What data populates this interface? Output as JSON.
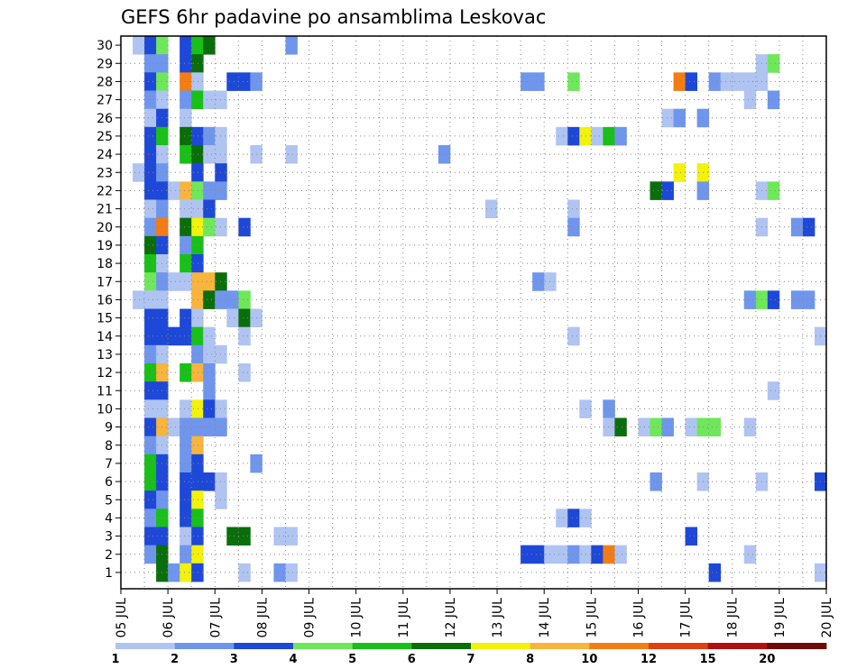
{
  "chart_data": {
    "type": "heatmap",
    "title": "GEFS 6hr padavine po ansamblima Leskovac",
    "x_tick_labels": [
      "05 JUL",
      "06 JUL",
      "07 JUL",
      "08 JUL",
      "09 JUL",
      "10 JUL",
      "11 JUL",
      "12 JUL",
      "13 JUL",
      "14 JUL",
      "15 JUL",
      "16 JUL",
      "17 JUL",
      "18 JUL",
      "19 JUL",
      "20 JUL"
    ],
    "y_tick_labels": [
      "1",
      "2",
      "3",
      "4",
      "5",
      "6",
      "7",
      "8",
      "9",
      "10",
      "11",
      "12",
      "13",
      "14",
      "15",
      "16",
      "17",
      "18",
      "19",
      "20",
      "21",
      "22",
      "23",
      "24",
      "25",
      "26",
      "27",
      "28",
      "29",
      "30"
    ],
    "xlim": [
      0,
      60
    ],
    "ylim": [
      0,
      30
    ],
    "grid": true,
    "colorbar": {
      "levels": [
        "1",
        "2",
        "3",
        "4",
        "5",
        "6",
        "7",
        "8",
        "10",
        "12",
        "15",
        "20"
      ],
      "colors": [
        "#b0c4f2",
        "#6f96ec",
        "#1e48d8",
        "#6ee85a",
        "#18c018",
        "#0a6e0a",
        "#f2f20a",
        "#f8b43c",
        "#f47c14",
        "#e04010",
        "#b41010",
        "#6e0a0a"
      ]
    },
    "cells": [
      [
        1,
        30,
        1
      ],
      [
        2,
        30,
        3
      ],
      [
        3,
        30,
        4
      ],
      [
        5,
        30,
        3
      ],
      [
        6,
        30,
        5
      ],
      [
        7,
        30,
        6
      ],
      [
        14,
        30,
        2
      ],
      [
        2,
        29,
        2
      ],
      [
        3,
        29,
        2
      ],
      [
        5,
        29,
        3
      ],
      [
        6,
        29,
        6
      ],
      [
        54,
        29,
        1
      ],
      [
        55,
        29,
        4
      ],
      [
        2,
        28,
        3
      ],
      [
        3,
        28,
        4
      ],
      [
        5,
        28,
        9
      ],
      [
        6,
        28,
        1
      ],
      [
        9,
        28,
        3
      ],
      [
        10,
        28,
        3
      ],
      [
        11,
        28,
        2
      ],
      [
        34,
        28,
        2
      ],
      [
        35,
        28,
        2
      ],
      [
        38,
        28,
        4
      ],
      [
        47,
        28,
        9
      ],
      [
        48,
        28,
        3
      ],
      [
        50,
        28,
        2
      ],
      [
        51,
        28,
        1
      ],
      [
        52,
        28,
        1
      ],
      [
        53,
        28,
        1
      ],
      [
        54,
        28,
        1
      ],
      [
        2,
        27,
        2
      ],
      [
        3,
        27,
        1
      ],
      [
        5,
        27,
        2
      ],
      [
        6,
        27,
        5
      ],
      [
        7,
        27,
        1
      ],
      [
        8,
        27,
        1
      ],
      [
        53,
        27,
        1
      ],
      [
        55,
        27,
        2
      ],
      [
        2,
        26,
        1
      ],
      [
        3,
        26,
        3
      ],
      [
        5,
        26,
        1
      ],
      [
        46,
        26,
        1
      ],
      [
        47,
        26,
        2
      ],
      [
        49,
        26,
        2
      ],
      [
        2,
        25,
        3
      ],
      [
        3,
        25,
        5
      ],
      [
        5,
        25,
        6
      ],
      [
        6,
        25,
        3
      ],
      [
        7,
        25,
        2
      ],
      [
        8,
        25,
        1
      ],
      [
        37,
        25,
        1
      ],
      [
        38,
        25,
        3
      ],
      [
        39,
        25,
        7
      ],
      [
        40,
        25,
        1
      ],
      [
        41,
        25,
        5
      ],
      [
        42,
        25,
        2
      ],
      [
        2,
        24,
        3
      ],
      [
        3,
        24,
        1
      ],
      [
        5,
        24,
        5
      ],
      [
        6,
        24,
        6
      ],
      [
        7,
        24,
        1
      ],
      [
        8,
        24,
        1
      ],
      [
        11,
        24,
        1
      ],
      [
        14,
        24,
        1
      ],
      [
        27,
        24,
        2
      ],
      [
        1,
        23,
        1
      ],
      [
        2,
        23,
        3
      ],
      [
        3,
        23,
        2
      ],
      [
        6,
        23,
        3
      ],
      [
        8,
        23,
        3
      ],
      [
        47,
        23,
        7
      ],
      [
        49,
        23,
        7
      ],
      [
        2,
        22,
        3
      ],
      [
        3,
        22,
        3
      ],
      [
        4,
        22,
        1
      ],
      [
        5,
        22,
        8
      ],
      [
        6,
        22,
        4
      ],
      [
        7,
        22,
        2
      ],
      [
        8,
        22,
        2
      ],
      [
        45,
        22,
        6
      ],
      [
        46,
        22,
        3
      ],
      [
        49,
        22,
        2
      ],
      [
        54,
        22,
        1
      ],
      [
        55,
        22,
        4
      ],
      [
        2,
        21,
        1
      ],
      [
        3,
        21,
        2
      ],
      [
        5,
        21,
        1
      ],
      [
        6,
        21,
        1
      ],
      [
        7,
        21,
        3
      ],
      [
        31,
        21,
        1
      ],
      [
        38,
        21,
        1
      ],
      [
        2,
        20,
        2
      ],
      [
        3,
        20,
        9
      ],
      [
        5,
        20,
        6
      ],
      [
        6,
        20,
        7
      ],
      [
        7,
        20,
        4
      ],
      [
        8,
        20,
        1
      ],
      [
        10,
        20,
        3
      ],
      [
        38,
        20,
        2
      ],
      [
        54,
        20,
        1
      ],
      [
        57,
        20,
        2
      ],
      [
        58,
        20,
        3
      ],
      [
        2,
        19,
        6
      ],
      [
        3,
        19,
        3
      ],
      [
        5,
        19,
        2
      ],
      [
        6,
        19,
        5
      ],
      [
        2,
        18,
        5
      ],
      [
        3,
        18,
        1
      ],
      [
        5,
        18,
        5
      ],
      [
        6,
        18,
        3
      ],
      [
        2,
        17,
        4
      ],
      [
        3,
        17,
        2
      ],
      [
        4,
        17,
        1
      ],
      [
        5,
        17,
        1
      ],
      [
        6,
        17,
        8
      ],
      [
        7,
        17,
        8
      ],
      [
        8,
        17,
        6
      ],
      [
        35,
        17,
        2
      ],
      [
        36,
        17,
        1
      ],
      [
        1,
        16,
        1
      ],
      [
        2,
        16,
        1
      ],
      [
        3,
        16,
        1
      ],
      [
        6,
        16,
        8
      ],
      [
        7,
        16,
        6
      ],
      [
        8,
        16,
        2
      ],
      [
        9,
        16,
        2
      ],
      [
        10,
        16,
        4
      ],
      [
        53,
        16,
        2
      ],
      [
        54,
        16,
        4
      ],
      [
        55,
        16,
        3
      ],
      [
        57,
        16,
        2
      ],
      [
        58,
        16,
        2
      ],
      [
        2,
        15,
        3
      ],
      [
        3,
        15,
        3
      ],
      [
        5,
        15,
        3
      ],
      [
        6,
        15,
        1
      ],
      [
        9,
        15,
        1
      ],
      [
        10,
        15,
        6
      ],
      [
        11,
        15,
        1
      ],
      [
        2,
        14,
        3
      ],
      [
        3,
        14,
        3
      ],
      [
        4,
        14,
        3
      ],
      [
        5,
        14,
        3
      ],
      [
        6,
        14,
        5
      ],
      [
        7,
        14,
        1
      ],
      [
        10,
        14,
        1
      ],
      [
        38,
        14,
        1
      ],
      [
        59,
        14,
        1
      ],
      [
        2,
        13,
        2
      ],
      [
        3,
        13,
        1
      ],
      [
        6,
        13,
        2
      ],
      [
        7,
        13,
        1
      ],
      [
        8,
        13,
        1
      ],
      [
        2,
        12,
        5
      ],
      [
        3,
        12,
        8
      ],
      [
        5,
        12,
        5
      ],
      [
        6,
        12,
        8
      ],
      [
        7,
        12,
        2
      ],
      [
        10,
        12,
        1
      ],
      [
        2,
        11,
        3
      ],
      [
        3,
        11,
        3
      ],
      [
        7,
        11,
        2
      ],
      [
        55,
        11,
        1
      ],
      [
        2,
        10,
        1
      ],
      [
        3,
        10,
        1
      ],
      [
        5,
        10,
        1
      ],
      [
        6,
        10,
        7
      ],
      [
        7,
        10,
        3
      ],
      [
        8,
        10,
        1
      ],
      [
        39,
        10,
        1
      ],
      [
        41,
        10,
        2
      ],
      [
        2,
        9,
        3
      ],
      [
        3,
        9,
        8
      ],
      [
        4,
        9,
        1
      ],
      [
        5,
        9,
        2
      ],
      [
        6,
        9,
        2
      ],
      [
        7,
        9,
        2
      ],
      [
        8,
        9,
        2
      ],
      [
        41,
        9,
        1
      ],
      [
        42,
        9,
        6
      ],
      [
        44,
        9,
        1
      ],
      [
        45,
        9,
        4
      ],
      [
        46,
        9,
        2
      ],
      [
        48,
        9,
        1
      ],
      [
        49,
        9,
        4
      ],
      [
        50,
        9,
        4
      ],
      [
        53,
        9,
        1
      ],
      [
        2,
        8,
        2
      ],
      [
        3,
        8,
        1
      ],
      [
        5,
        8,
        2
      ],
      [
        6,
        8,
        8
      ],
      [
        2,
        7,
        5
      ],
      [
        3,
        7,
        3
      ],
      [
        5,
        7,
        2
      ],
      [
        6,
        7,
        3
      ],
      [
        11,
        7,
        2
      ],
      [
        2,
        6,
        5
      ],
      [
        3,
        6,
        3
      ],
      [
        5,
        6,
        3
      ],
      [
        6,
        6,
        3
      ],
      [
        7,
        6,
        3
      ],
      [
        8,
        6,
        1
      ],
      [
        45,
        6,
        2
      ],
      [
        49,
        6,
        1
      ],
      [
        54,
        6,
        1
      ],
      [
        59,
        6,
        3
      ],
      [
        2,
        5,
        3
      ],
      [
        3,
        5,
        2
      ],
      [
        5,
        5,
        3
      ],
      [
        6,
        5,
        7
      ],
      [
        8,
        5,
        1
      ],
      [
        2,
        4,
        2
      ],
      [
        3,
        4,
        5
      ],
      [
        5,
        4,
        3
      ],
      [
        6,
        4,
        5
      ],
      [
        37,
        4,
        1
      ],
      [
        38,
        4,
        3
      ],
      [
        39,
        4,
        1
      ],
      [
        2,
        3,
        3
      ],
      [
        3,
        3,
        3
      ],
      [
        5,
        3,
        1
      ],
      [
        6,
        3,
        3
      ],
      [
        9,
        3,
        6
      ],
      [
        10,
        3,
        6
      ],
      [
        13,
        3,
        1
      ],
      [
        14,
        3,
        1
      ],
      [
        48,
        3,
        3
      ],
      [
        2,
        2,
        2
      ],
      [
        3,
        2,
        6
      ],
      [
        5,
        2,
        2
      ],
      [
        6,
        2,
        7
      ],
      [
        34,
        2,
        3
      ],
      [
        35,
        2,
        3
      ],
      [
        36,
        2,
        1
      ],
      [
        37,
        2,
        1
      ],
      [
        38,
        2,
        2
      ],
      [
        39,
        2,
        1
      ],
      [
        40,
        2,
        3
      ],
      [
        41,
        2,
        9
      ],
      [
        42,
        2,
        1
      ],
      [
        53,
        2,
        1
      ],
      [
        3,
        1,
        6
      ],
      [
        4,
        1,
        2
      ],
      [
        5,
        1,
        7
      ],
      [
        6,
        1,
        3
      ],
      [
        10,
        1,
        1
      ],
      [
        13,
        1,
        2
      ],
      [
        14,
        1,
        1
      ],
      [
        50,
        1,
        3
      ],
      [
        59,
        1,
        1
      ]
    ]
  }
}
